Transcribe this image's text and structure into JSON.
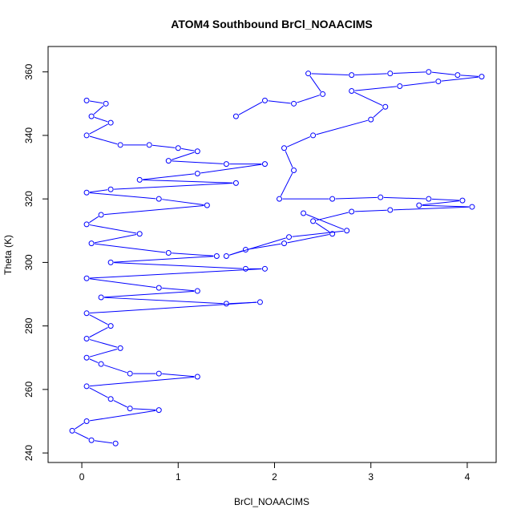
{
  "chart_data": {
    "type": "scatter",
    "title": "ATOM4 Southbound BrCl_NOAACIMS",
    "xlabel": "BrCl_NOAACIMS",
    "ylabel": "Theta (K)",
    "xlim": [
      -0.35,
      4.3
    ],
    "ylim": [
      237,
      368
    ],
    "xticks": [
      0,
      1,
      2,
      3,
      4
    ],
    "yticks": [
      240,
      260,
      280,
      300,
      320,
      340,
      360
    ],
    "grid": false,
    "legend": "none",
    "marker": "open-circle",
    "lines_connecting_points": true,
    "color": "#0000ff",
    "series": [
      {
        "values": [
          {
            "x": 0.05,
            "y": 351
          },
          {
            "x": 0.25,
            "y": 350
          },
          {
            "x": 0.1,
            "y": 346
          },
          {
            "x": 0.3,
            "y": 344
          },
          {
            "x": 0.05,
            "y": 340
          },
          {
            "x": 0.4,
            "y": 337
          },
          {
            "x": 0.7,
            "y": 337
          },
          {
            "x": 1.0,
            "y": 336
          },
          {
            "x": 1.2,
            "y": 335
          },
          {
            "x": 0.9,
            "y": 332
          },
          {
            "x": 1.5,
            "y": 331
          },
          {
            "x": 1.9,
            "y": 331
          },
          {
            "x": 1.2,
            "y": 328
          },
          {
            "x": 0.6,
            "y": 326
          },
          {
            "x": 1.6,
            "y": 325
          },
          {
            "x": 0.3,
            "y": 323
          },
          {
            "x": 0.05,
            "y": 322
          },
          {
            "x": 0.8,
            "y": 320
          },
          {
            "x": 1.3,
            "y": 318
          },
          {
            "x": 0.2,
            "y": 315
          },
          {
            "x": 0.05,
            "y": 312
          },
          {
            "x": 0.6,
            "y": 309
          },
          {
            "x": 0.1,
            "y": 306
          },
          {
            "x": 0.9,
            "y": 303
          },
          {
            "x": 1.4,
            "y": 302
          },
          {
            "x": 0.3,
            "y": 300
          },
          {
            "x": 1.7,
            "y": 298
          },
          {
            "x": 1.9,
            "y": 298
          },
          {
            "x": 0.05,
            "y": 295
          },
          {
            "x": 0.8,
            "y": 292
          },
          {
            "x": 1.2,
            "y": 291
          },
          {
            "x": 0.2,
            "y": 289
          },
          {
            "x": 1.5,
            "y": 287
          },
          {
            "x": 1.85,
            "y": 287.5
          },
          {
            "x": 0.05,
            "y": 284
          },
          {
            "x": 0.3,
            "y": 280
          },
          {
            "x": 0.05,
            "y": 276
          },
          {
            "x": 0.4,
            "y": 273
          },
          {
            "x": 0.05,
            "y": 270
          },
          {
            "x": 0.2,
            "y": 268
          },
          {
            "x": 0.5,
            "y": 265
          },
          {
            "x": 0.8,
            "y": 265
          },
          {
            "x": 1.2,
            "y": 264
          },
          {
            "x": 0.05,
            "y": 261
          },
          {
            "x": 0.3,
            "y": 257
          },
          {
            "x": 0.5,
            "y": 254
          },
          {
            "x": 0.8,
            "y": 253.5
          },
          {
            "x": 0.05,
            "y": 250
          },
          {
            "x": -0.1,
            "y": 247
          },
          {
            "x": 0.1,
            "y": 244
          },
          {
            "x": 0.35,
            "y": 243
          }
        ]
      },
      {
        "values": [
          {
            "x": 1.6,
            "y": 346
          },
          {
            "x": 1.9,
            "y": 351
          },
          {
            "x": 2.2,
            "y": 350
          },
          {
            "x": 2.5,
            "y": 353
          },
          {
            "x": 2.35,
            "y": 359.5
          },
          {
            "x": 2.8,
            "y": 359
          },
          {
            "x": 3.2,
            "y": 359.5
          },
          {
            "x": 3.6,
            "y": 360
          },
          {
            "x": 3.9,
            "y": 359
          },
          {
            "x": 4.15,
            "y": 358.5
          },
          {
            "x": 3.7,
            "y": 357
          },
          {
            "x": 3.3,
            "y": 355.5
          },
          {
            "x": 2.8,
            "y": 354
          },
          {
            "x": 3.15,
            "y": 349
          },
          {
            "x": 3.0,
            "y": 345
          },
          {
            "x": 2.4,
            "y": 340
          },
          {
            "x": 2.1,
            "y": 336
          },
          {
            "x": 2.2,
            "y": 329
          },
          {
            "x": 2.05,
            "y": 320
          },
          {
            "x": 2.6,
            "y": 320
          },
          {
            "x": 3.1,
            "y": 320.5
          },
          {
            "x": 3.6,
            "y": 320
          },
          {
            "x": 3.95,
            "y": 319.5
          },
          {
            "x": 3.5,
            "y": 318
          },
          {
            "x": 4.05,
            "y": 317.5
          },
          {
            "x": 3.2,
            "y": 316.5
          },
          {
            "x": 2.8,
            "y": 316
          },
          {
            "x": 2.4,
            "y": 313
          },
          {
            "x": 2.6,
            "y": 309
          },
          {
            "x": 2.1,
            "y": 306
          },
          {
            "x": 1.7,
            "y": 304
          },
          {
            "x": 1.5,
            "y": 302
          },
          {
            "x": 2.15,
            "y": 308
          },
          {
            "x": 2.75,
            "y": 310
          },
          {
            "x": 2.3,
            "y": 315.5
          }
        ]
      }
    ]
  }
}
